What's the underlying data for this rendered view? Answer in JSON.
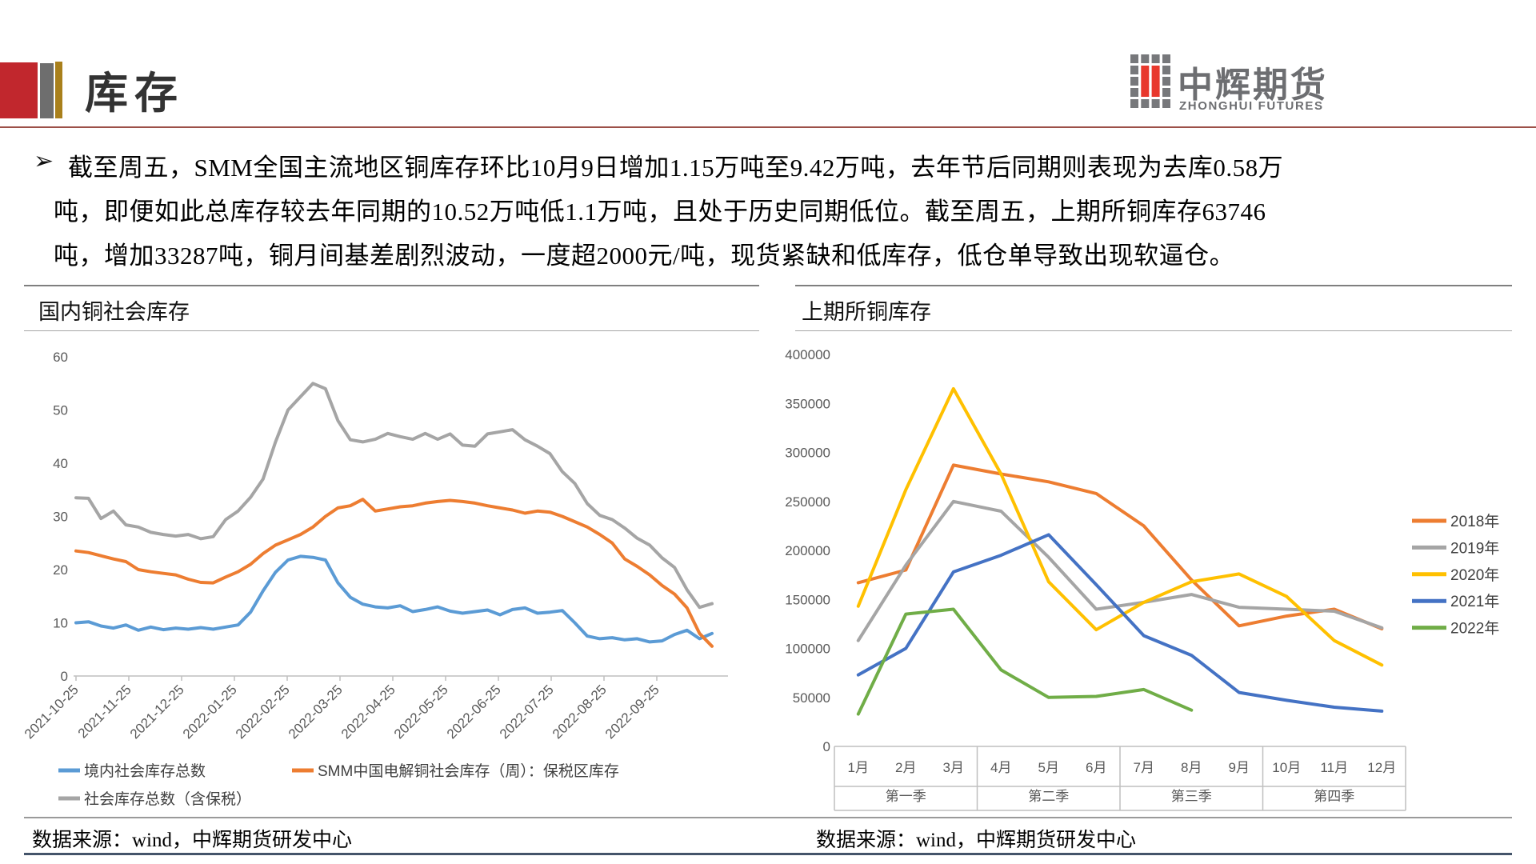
{
  "header": {
    "title": "库存",
    "logo_text": "中辉期货",
    "logo_subtext": "ZHONGHUI FUTURES"
  },
  "summary": {
    "bullet": "➢",
    "lines": [
      "截至周五，SMM全国主流地区铜库存环比10月9日增加1.15万吨至9.42万吨，去年节后同期则表现为去库0.58万",
      "吨，即便如此总库存较去年同期的10.52万吨低1.1万吨，且处于历史同期低位。截至周五，上期所铜库存63746",
      "吨，增加33287吨，铜月间基差剧烈波动，一度超2000元/吨，现货紧缺和低库存，低仓单导致出现软逼仓。"
    ]
  },
  "chart_data": [
    {
      "type": "line",
      "title": "国内铜社会库存",
      "source": "数据来源：wind，中辉期货研发中心",
      "ylim": [
        0,
        60
      ],
      "yticks": [
        0,
        10,
        20,
        30,
        40,
        50,
        60
      ],
      "x_tick_labels": [
        "2021-10-25",
        "2021-11-25",
        "2021-12-25",
        "2022-01-25",
        "2022-02-25",
        "2022-03-25",
        "2022-04-25",
        "2022-05-25",
        "2022-06-25",
        "2022-07-25",
        "2022-08-25",
        "2022-09-25"
      ],
      "legend_position": "bottom",
      "grid": false,
      "series": [
        {
          "name": "境内社会库存总数",
          "color": "#5B9BD5",
          "values": [
            10.0,
            10.2,
            9.4,
            9.0,
            9.6,
            8.6,
            9.2,
            8.7,
            9.0,
            8.8,
            9.1,
            8.8,
            9.2,
            9.6,
            12.0,
            16.0,
            19.5,
            21.8,
            22.5,
            22.3,
            21.8,
            17.5,
            14.8,
            13.5,
            13.0,
            12.8,
            13.2,
            12.1,
            12.5,
            13.0,
            12.2,
            11.8,
            12.1,
            12.4,
            11.5,
            12.5,
            12.8,
            11.8,
            12.0,
            12.3,
            10.0,
            7.5,
            7.0,
            7.2,
            6.8,
            7.0,
            6.4,
            6.6,
            7.8,
            8.6,
            7.0,
            8.0
          ]
        },
        {
          "name": "SMM中国电解铜社会库存（周）：保税区库存",
          "color": "#ED7D31",
          "values": [
            23.5,
            23.2,
            22.6,
            22.0,
            21.5,
            20.0,
            19.6,
            19.3,
            19.0,
            18.2,
            17.6,
            17.5,
            18.6,
            19.6,
            21.0,
            23.0,
            24.6,
            25.6,
            26.6,
            28.0,
            30.0,
            31.6,
            32.0,
            33.2,
            31.0,
            31.4,
            31.8,
            32.0,
            32.5,
            32.8,
            33.0,
            32.8,
            32.5,
            32.0,
            31.6,
            31.2,
            30.6,
            31.0,
            30.8,
            30.0,
            29.0,
            28.0,
            26.6,
            25.0,
            22.0,
            20.6,
            19.0,
            17.0,
            15.4,
            12.8,
            8.0,
            5.6
          ]
        },
        {
          "name": "社会库存总数（含保税）",
          "color": "#A5A5A5",
          "values": [
            33.5,
            33.4,
            29.6,
            31.0,
            28.4,
            28.0,
            27.0,
            26.6,
            26.3,
            26.6,
            25.8,
            26.2,
            29.4,
            31.0,
            33.6,
            37.0,
            44.0,
            50.0,
            52.5,
            55.0,
            54.0,
            48.0,
            44.4,
            44.0,
            44.5,
            45.6,
            45.0,
            44.5,
            45.6,
            44.5,
            45.5,
            43.4,
            43.2,
            45.5,
            45.9,
            46.3,
            44.4,
            43.2,
            41.8,
            38.4,
            36.2,
            32.4,
            30.2,
            29.4,
            27.8,
            25.9,
            24.6,
            22.2,
            20.4,
            16.2,
            12.9,
            13.6
          ]
        }
      ]
    },
    {
      "type": "line",
      "title": "上期所铜库存",
      "source": "数据来源：wind，中辉期货研发中心",
      "ylim": [
        0,
        400000
      ],
      "yticks": [
        0,
        50000,
        100000,
        150000,
        200000,
        250000,
        300000,
        350000,
        400000
      ],
      "categories": [
        "1月",
        "2月",
        "3月",
        "4月",
        "5月",
        "6月",
        "7月",
        "8月",
        "9月",
        "10月",
        "11月",
        "12月"
      ],
      "quarters": [
        "第一季",
        "第二季",
        "第三季",
        "第四季"
      ],
      "legend_position": "right",
      "grid": false,
      "series": [
        {
          "name": "2018年",
          "color": "#ED7D31",
          "values": [
            167000,
            180000,
            287000,
            278000,
            270000,
            258000,
            225000,
            170000,
            123000,
            133000,
            140000,
            120000
          ]
        },
        {
          "name": "2019年",
          "color": "#A5A5A5",
          "values": [
            108000,
            185000,
            250000,
            240000,
            193000,
            140000,
            147000,
            155000,
            142000,
            140000,
            138000,
            121000
          ]
        },
        {
          "name": "2020年",
          "color": "#FFC000",
          "values": [
            143000,
            262000,
            365000,
            278000,
            168000,
            119000,
            147000,
            168000,
            176000,
            153000,
            108000,
            83000
          ]
        },
        {
          "name": "2021年",
          "color": "#4472C4",
          "values": [
            73000,
            100000,
            178000,
            195000,
            216000,
            165000,
            113000,
            93000,
            55000,
            47000,
            40000,
            36000
          ]
        },
        {
          "name": "2022年",
          "color": "#70AD47",
          "values": [
            33000,
            135000,
            140000,
            78000,
            50000,
            51000,
            58000,
            37000,
            null,
            null,
            null,
            null
          ]
        }
      ]
    }
  ]
}
